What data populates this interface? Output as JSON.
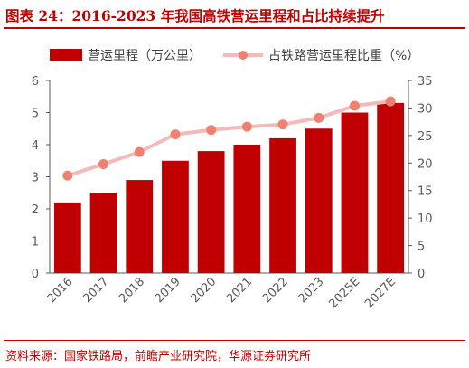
{
  "title": "图表 24：2016-2023 年我国高铁营运里程和占比持续提升",
  "source": "资料来源：国家铁路局，前瞻产业研究院，华源证券研究所",
  "colors": {
    "bar": "#c00000",
    "line": "#f4b9b9",
    "marker": "#ee8270",
    "axis": "#595959",
    "accent": "#c00000"
  },
  "chart_data": {
    "type": "bar+line",
    "categories": [
      "2016",
      "2017",
      "2018",
      "2019",
      "2020",
      "2021",
      "2022",
      "2023",
      "2025E",
      "2027E"
    ],
    "series": [
      {
        "name": "营运里程（万公里）",
        "type": "bar",
        "axis": "left",
        "values": [
          2.2,
          2.5,
          2.9,
          3.5,
          3.8,
          4.0,
          4.2,
          4.5,
          5.0,
          5.3
        ]
      },
      {
        "name": "占铁路营运里程比重（%）",
        "type": "line",
        "axis": "right",
        "values": [
          17.7,
          19.8,
          22.0,
          25.2,
          26.0,
          26.6,
          27.0,
          28.2,
          30.4,
          31.2
        ]
      }
    ],
    "ylim_left": [
      0,
      6
    ],
    "yticks_left": [
      "0",
      "1",
      "2",
      "3",
      "4",
      "5",
      "6"
    ],
    "ylim_right": [
      0,
      35
    ],
    "yticks_right": [
      "0",
      "5",
      "10",
      "15",
      "20",
      "25",
      "30",
      "35"
    ],
    "legend_position": "top",
    "grid": false
  }
}
